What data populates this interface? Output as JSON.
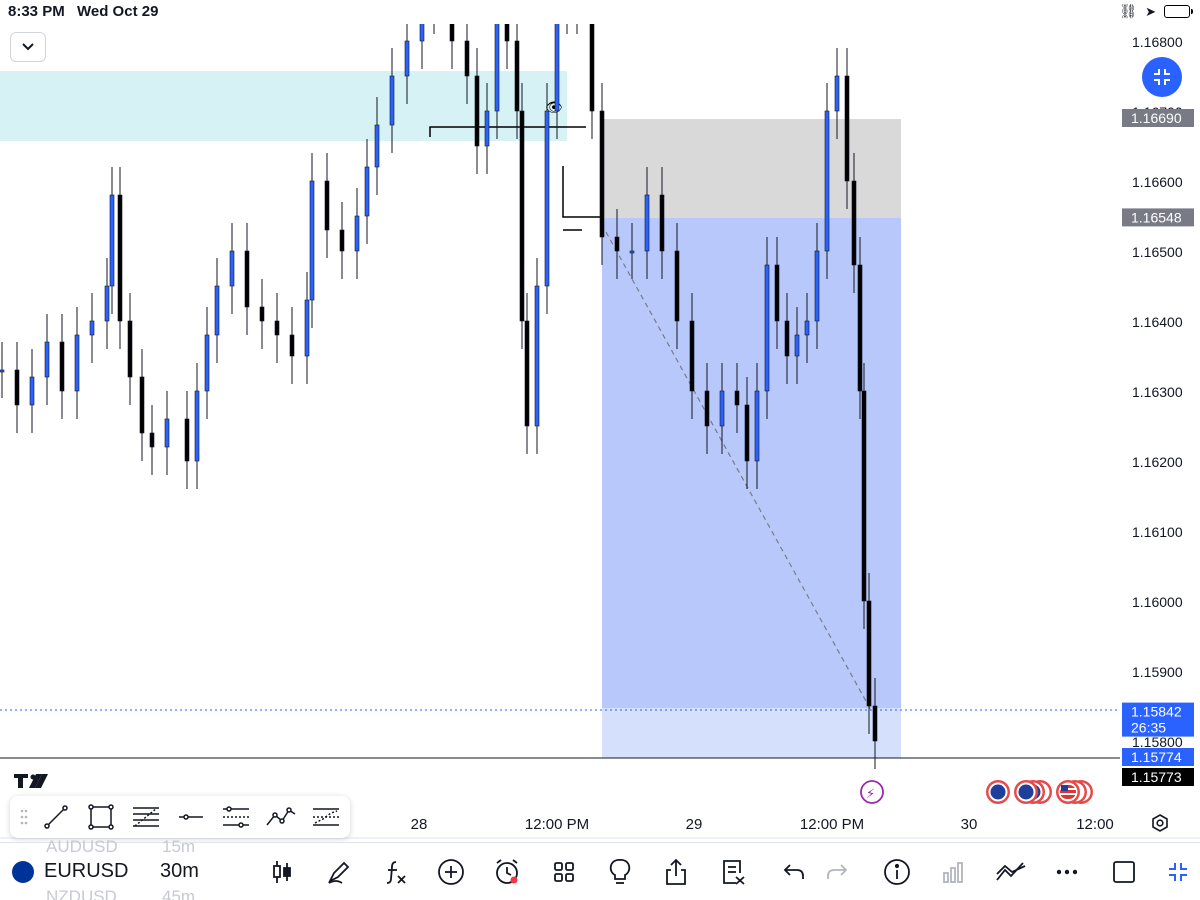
{
  "status_bar": {
    "time": "8:33 PM",
    "date": "Wed Oct 29"
  },
  "chart": {
    "symbol": "EURUSD",
    "interval": "30m",
    "price_scale": [
      "1.16800",
      "1.16700",
      "1.16600",
      "1.16500",
      "1.16400",
      "1.16300",
      "1.16200",
      "1.16100",
      "1.16000",
      "1.15900",
      "1.15800"
    ],
    "price_tags": [
      {
        "price": "1.16690",
        "color": "#787b86"
      },
      {
        "price": "1.16548",
        "color": "#787b86"
      },
      {
        "price": "1.15842",
        "countdown": "26:35",
        "color": "#2962ff"
      },
      {
        "price": "1.15774",
        "color": "#2962ff"
      },
      {
        "price": "1.15773",
        "color": "#000000"
      }
    ],
    "time_scale": [
      "28",
      "12:00 PM",
      "29",
      "12:00 PM",
      "30",
      "12:00"
    ],
    "colors": {
      "bull": "#2962ff",
      "bear": "#000000",
      "zone": "#d6f2f5",
      "stop_zone": "#d9d9d9",
      "target_zone": "#b8c8fb"
    }
  },
  "drawing_tools": [
    "trend-line",
    "rectangle",
    "fib-retracement",
    "horizontal-line",
    "parallel-channel",
    "path",
    "pitchfork"
  ],
  "bottom_bar": {
    "ghost_above": {
      "symbol": "AUDUSD",
      "interval": "15m"
    },
    "ghost_below": {
      "symbol": "NZDUSD",
      "interval": "45m"
    },
    "symbol": "EURUSD",
    "interval": "30m",
    "buttons": [
      "candles-icon",
      "brush-icon",
      "indicators-icon",
      "add-icon",
      "alert-icon",
      "layouts-icon",
      "ideas-icon",
      "share-icon",
      "watchlist-icon",
      "undo-icon",
      "redo-icon",
      "info-icon",
      "chart-stats-icon",
      "trading-icon",
      "more-icon",
      "rectangle-icon",
      "collapse-icon"
    ]
  }
}
